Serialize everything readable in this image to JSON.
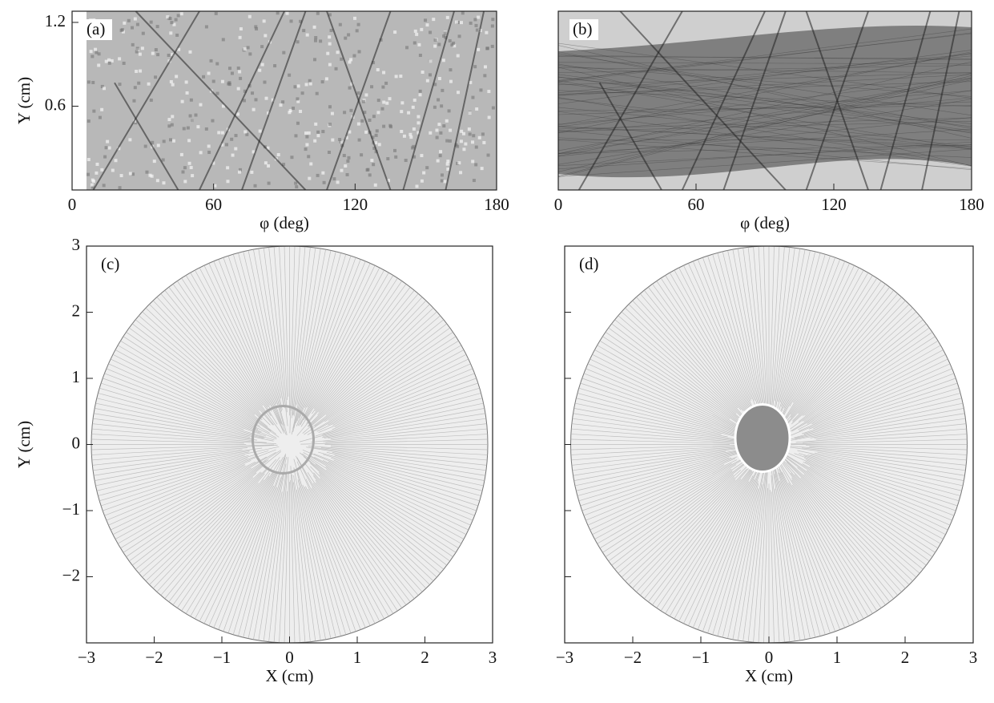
{
  "chart_data": [
    {
      "type": "image",
      "panel_label": "(a)",
      "xlabel": "φ (deg)",
      "ylabel": "Y (cm)",
      "xlim": [
        0,
        180
      ],
      "xticks": [
        0,
        60,
        120,
        180
      ],
      "ylim": [
        0,
        1.28
      ],
      "yticks": [
        0.6,
        1.2
      ]
    },
    {
      "type": "image",
      "panel_label": "(b)",
      "xlabel": "φ (deg)",
      "xlim": [
        0,
        180
      ],
      "xticks": [
        0,
        60,
        120,
        180
      ]
    },
    {
      "type": "image",
      "panel_label": "(c)",
      "xlabel": "X (cm)",
      "ylabel": "Y (cm)",
      "xlim": [
        -3,
        3
      ],
      "xticks": [
        {
          "value": -3,
          "label": "−3"
        },
        {
          "value": -2,
          "label": "−2"
        },
        {
          "value": -1,
          "label": "−1"
        },
        0,
        1,
        2,
        3
      ],
      "ylim": [
        -3,
        3
      ],
      "yticks": [
        {
          "value": -2,
          "label": "−2"
        },
        {
          "value": -1,
          "label": "−1"
        },
        0,
        1,
        2,
        3
      ]
    },
    {
      "type": "image",
      "panel_label": "(d)",
      "xlabel": "X (cm)",
      "xlim": [
        -3,
        3
      ],
      "xticks": [
        {
          "value": -3,
          "label": "−3"
        },
        {
          "value": -2,
          "label": "−2"
        },
        {
          "value": -1,
          "label": "−1"
        },
        0,
        1,
        2,
        3
      ],
      "ylim": [
        -3,
        3
      ],
      "yticks": [
        -2,
        -1,
        0,
        1,
        2
      ],
      "ytick_labels": false
    }
  ]
}
